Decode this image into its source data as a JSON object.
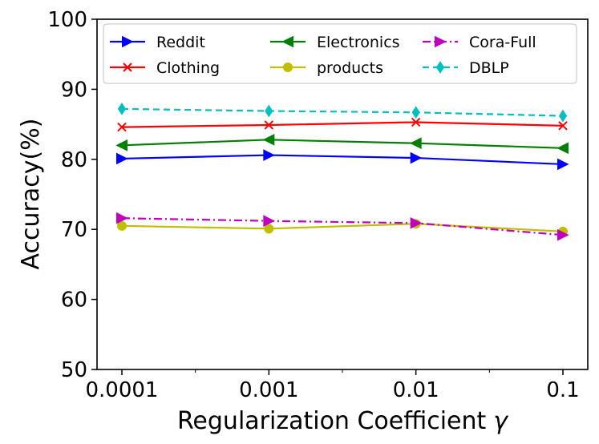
{
  "chart_data": {
    "type": "line",
    "categories": [
      "0.0001",
      "0.001",
      "0.01",
      "0.1"
    ],
    "xlabel": "Regularization Coefficient",
    "xlabel_symbol": "γ",
    "ylabel": "Accuracy(%)",
    "ylim": [
      50,
      100
    ],
    "yticks": [
      50,
      60,
      70,
      80,
      90,
      100
    ],
    "grid": false,
    "legend_position": "top",
    "series": [
      {
        "name": "Reddit",
        "values": [
          80.1,
          80.6,
          80.2,
          79.3
        ],
        "color": "#0000ff",
        "marker": "triangle-right",
        "dash": "solid"
      },
      {
        "name": "Clothing",
        "values": [
          84.6,
          84.9,
          85.3,
          84.8
        ],
        "color": "#ff0000",
        "marker": "x",
        "dash": "solid"
      },
      {
        "name": "Electronics",
        "values": [
          82.0,
          82.8,
          82.3,
          81.6
        ],
        "color": "#008000",
        "marker": "triangle-left",
        "dash": "solid"
      },
      {
        "name": "products",
        "values": [
          70.5,
          70.1,
          70.8,
          69.7
        ],
        "color": "#bfbf00",
        "marker": "circle",
        "dash": "solid"
      },
      {
        "name": "Cora-Full",
        "values": [
          71.6,
          71.2,
          70.9,
          69.2
        ],
        "color": "#bf00bf",
        "marker": "triangle-right",
        "dash": "dashdot"
      },
      {
        "name": "DBLP",
        "values": [
          87.2,
          86.9,
          86.7,
          86.2
        ],
        "color": "#00bfbf",
        "marker": "diamond",
        "dash": "dashed"
      }
    ]
  }
}
